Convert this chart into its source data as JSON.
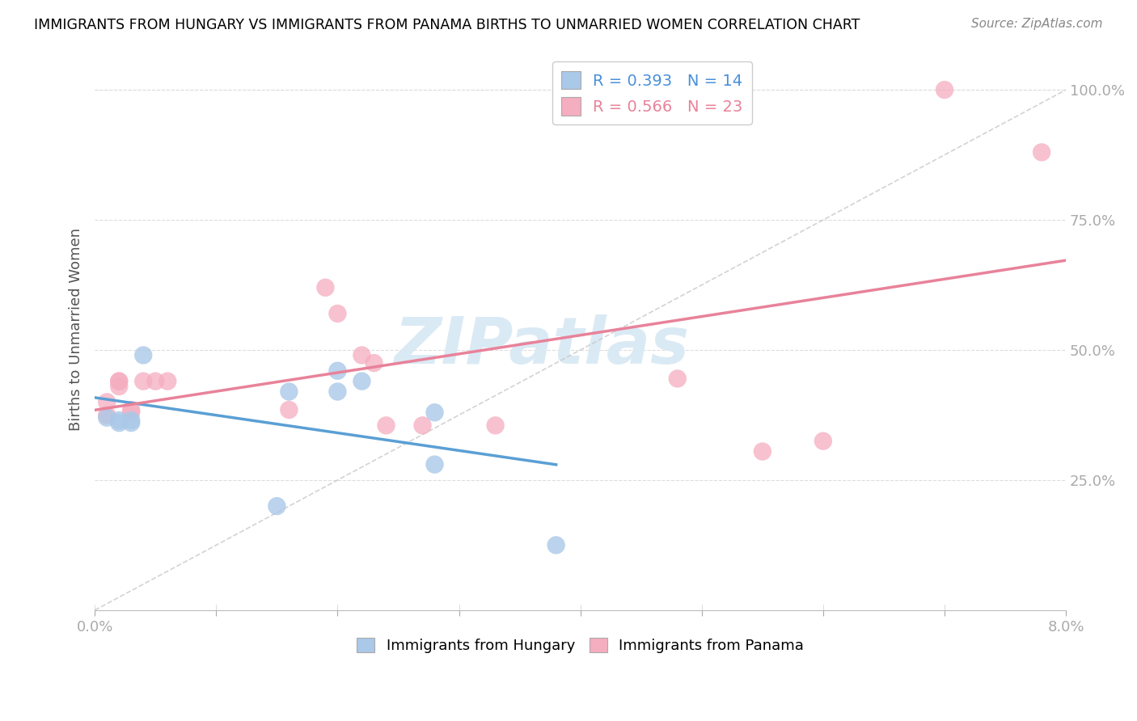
{
  "title": "IMMIGRANTS FROM HUNGARY VS IMMIGRANTS FROM PANAMA BIRTHS TO UNMARRIED WOMEN CORRELATION CHART",
  "source": "Source: ZipAtlas.com",
  "ylabel": "Births to Unmarried Women",
  "yticks": [
    "25.0%",
    "50.0%",
    "75.0%",
    "100.0%"
  ],
  "ytick_vals": [
    0.25,
    0.5,
    0.75,
    1.0
  ],
  "hungary_R": 0.393,
  "hungary_N": 14,
  "panama_R": 0.566,
  "panama_N": 23,
  "hungary_x": [
    0.001,
    0.002,
    0.002,
    0.003,
    0.003,
    0.004,
    0.015,
    0.016,
    0.02,
    0.02,
    0.022,
    0.028,
    0.028,
    0.038
  ],
  "hungary_y": [
    0.37,
    0.36,
    0.365,
    0.36,
    0.365,
    0.49,
    0.2,
    0.42,
    0.46,
    0.42,
    0.44,
    0.38,
    0.28,
    0.125
  ],
  "panama_x": [
    0.001,
    0.001,
    0.002,
    0.002,
    0.002,
    0.003,
    0.003,
    0.004,
    0.005,
    0.006,
    0.016,
    0.019,
    0.02,
    0.022,
    0.023,
    0.024,
    0.027,
    0.033,
    0.048,
    0.055,
    0.06,
    0.07,
    0.078
  ],
  "panama_y": [
    0.375,
    0.4,
    0.43,
    0.44,
    0.44,
    0.38,
    0.385,
    0.44,
    0.44,
    0.44,
    0.385,
    0.62,
    0.57,
    0.49,
    0.475,
    0.355,
    0.355,
    0.355,
    0.445,
    0.305,
    0.325,
    1.0,
    0.88
  ],
  "blue_color": "#aac8e8",
  "pink_color": "#f5adc0",
  "blue_line_color": "#5a9fd4",
  "pink_line_color": "#e8829a",
  "diagonal_color": "#c8c8c8",
  "watermark_text": "ZIPatlas",
  "watermark_color": "#daeaf5",
  "xmin": 0.0,
  "xmax": 0.08,
  "ymin": 0.0,
  "ymax": 1.08
}
